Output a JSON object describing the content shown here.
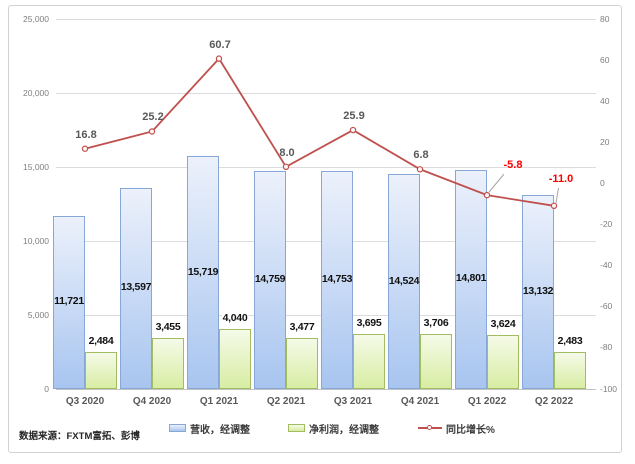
{
  "source_note": "数据来源：FXTM富拓、彭博",
  "chart_data": {
    "type": "bar",
    "subtype": "combo-bar-line",
    "title": "",
    "categories": [
      "Q3 2020",
      "Q4 2020",
      "Q1 2021",
      "Q2 2021",
      "Q3 2021",
      "Q4 2021",
      "Q1 2022",
      "Q2 2022"
    ],
    "series": [
      {
        "name": "营收，经调整",
        "type": "bar",
        "axis": "left",
        "values": [
          11721,
          13597,
          15719,
          14759,
          14753,
          14524,
          14801,
          13132
        ]
      },
      {
        "name": "净利润，经调整",
        "type": "bar",
        "axis": "left",
        "values": [
          2484,
          3455,
          4040,
          3477,
          3695,
          3706,
          3624,
          2483
        ]
      },
      {
        "name": "同比增长%",
        "type": "line",
        "axis": "right",
        "values": [
          16.8,
          25.2,
          60.7,
          8.0,
          25.9,
          6.8,
          -5.8,
          -11.0
        ]
      }
    ],
    "left_axis": {
      "min": 0,
      "max": 25000,
      "ticks": [
        25000,
        20000,
        15000,
        10000,
        5000,
        0
      ]
    },
    "right_axis": {
      "min": -100,
      "max": 80,
      "ticks": [
        80,
        60,
        40,
        20,
        0,
        -20,
        -40,
        -60,
        -80,
        -100
      ]
    },
    "grid": true,
    "legend_position": "bottom",
    "colors": {
      "revenue_fill_top": "#ecf1fb",
      "revenue_fill_bottom": "#a8c5f0",
      "revenue_border": "#87a8d7",
      "profit_fill_top": "#f5fae8",
      "profit_fill_bottom": "#d8eda3",
      "profit_border": "#a2bd61",
      "line": "#c0504d",
      "marker_fill": "#fdf6f6",
      "label_gray": "#595959",
      "label_negative": "#fe0000",
      "leader_line": "#a6a6a6"
    }
  },
  "legend": {
    "items": [
      {
        "label": "营收，经调整",
        "swatch": "bar-blue"
      },
      {
        "label": "净利润，经调整",
        "swatch": "bar-green"
      },
      {
        "label": "同比增长%",
        "swatch": "line-red"
      }
    ]
  }
}
